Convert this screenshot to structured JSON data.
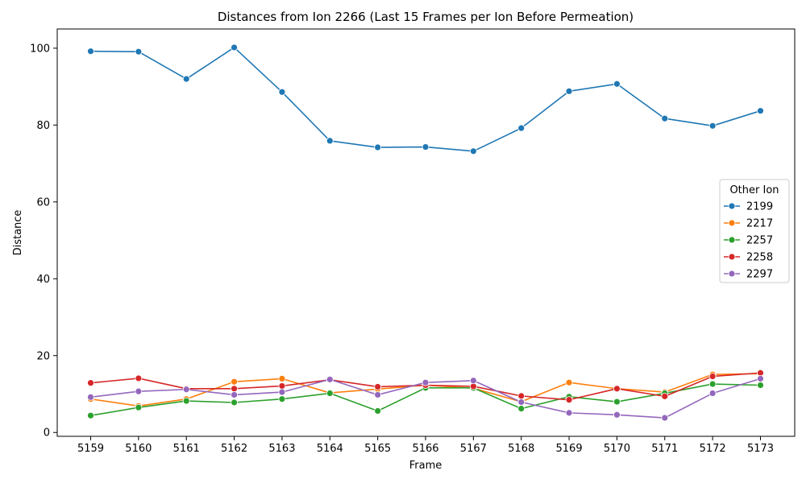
{
  "chart_data": {
    "type": "line",
    "title": "Distances from Ion 2266 (Last 15 Frames per Ion Before Permeation)",
    "xlabel": "Frame",
    "ylabel": "Distance",
    "categories": [
      "5159",
      "5160",
      "5161",
      "5162",
      "5163",
      "5164",
      "5165",
      "5166",
      "5167",
      "5168",
      "5169",
      "5170",
      "5171",
      "5172",
      "5173"
    ],
    "y_ticks": [
      "0",
      "20",
      "40",
      "60",
      "80",
      "100"
    ],
    "ylim": [
      -1,
      105
    ],
    "grid": false,
    "legend": {
      "title": "Other Ion",
      "placement": "right"
    },
    "series": [
      {
        "name": "2199",
        "color": "#1f77b4",
        "values": [
          99.2,
          99.1,
          92.0,
          100.2,
          88.6,
          75.9,
          74.2,
          74.3,
          73.2,
          79.2,
          88.8,
          90.7,
          81.7,
          79.8,
          83.7
        ]
      },
      {
        "name": "2217",
        "color": "#ff7f0e",
        "values": [
          8.7,
          6.9,
          8.7,
          13.2,
          14.0,
          10.3,
          11.3,
          12.3,
          11.5,
          8.0,
          13.0,
          11.4,
          10.5,
          15.1,
          15.3
        ]
      },
      {
        "name": "2257",
        "color": "#2ca02c",
        "values": [
          4.4,
          6.5,
          8.2,
          7.8,
          8.7,
          10.2,
          5.6,
          11.6,
          11.6,
          6.2,
          9.3,
          8.0,
          10.2,
          12.6,
          12.3
        ]
      },
      {
        "name": "2258",
        "color": "#d62728",
        "values": [
          12.9,
          14.1,
          11.4,
          11.4,
          12.1,
          13.7,
          11.9,
          12.3,
          12.0,
          9.5,
          8.5,
          11.4,
          9.4,
          14.6,
          15.5
        ]
      },
      {
        "name": "2297",
        "color": "#9467bd",
        "values": [
          9.2,
          10.7,
          11.2,
          9.8,
          10.5,
          13.8,
          9.8,
          13.0,
          13.5,
          7.9,
          5.1,
          4.6,
          3.8,
          10.2,
          14.0
        ]
      }
    ]
  }
}
